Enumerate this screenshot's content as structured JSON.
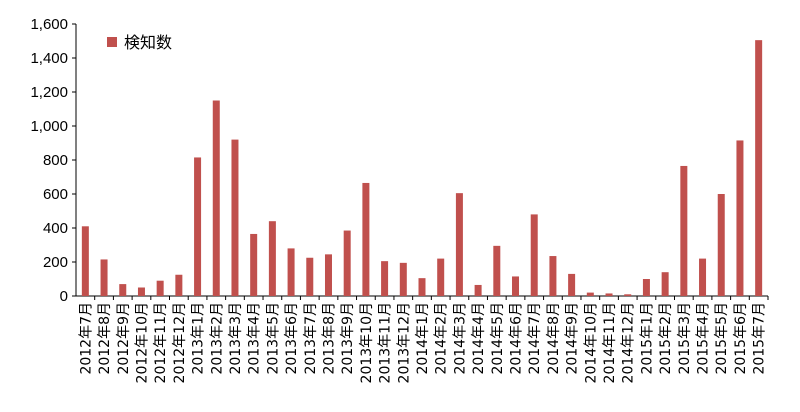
{
  "chart_data": {
    "type": "bar",
    "categories": [
      "2012年7月",
      "2012年8月",
      "2012年9月",
      "2012年10月",
      "2012年11月",
      "2012年12月",
      "2013年1月",
      "2013年2月",
      "2013年3月",
      "2013年4月",
      "2013年5月",
      "2013年6月",
      "2013年7月",
      "2013年8月",
      "2013年9月",
      "2013年10月",
      "2013年11月",
      "2013年12月",
      "2014年1月",
      "2014年2月",
      "2014年3月",
      "2014年4月",
      "2014年5月",
      "2014年6月",
      "2014年7月",
      "2014年8月",
      "2014年9月",
      "2014年10月",
      "2014年11月",
      "2014年12月",
      "2015年1月",
      "2015年2月",
      "2015年3月",
      "2015年4月",
      "2015年5月",
      "2015年6月",
      "2015年7月"
    ],
    "series": [
      {
        "name": "検知数",
        "color": "#c0504d",
        "values": [
          410,
          215,
          70,
          50,
          90,
          125,
          815,
          1150,
          920,
          365,
          440,
          280,
          225,
          245,
          385,
          665,
          205,
          195,
          105,
          220,
          605,
          65,
          295,
          115,
          480,
          235,
          130,
          20,
          15,
          10,
          100,
          140,
          765,
          220,
          600,
          915,
          1505
        ]
      }
    ],
    "y_ticks": [
      "0",
      "200",
      "400",
      "600",
      "800",
      "1,000",
      "1,200",
      "1,400",
      "1,600"
    ],
    "ylim": [
      0,
      1600
    ],
    "grid": false,
    "legend_position": "top-left"
  }
}
